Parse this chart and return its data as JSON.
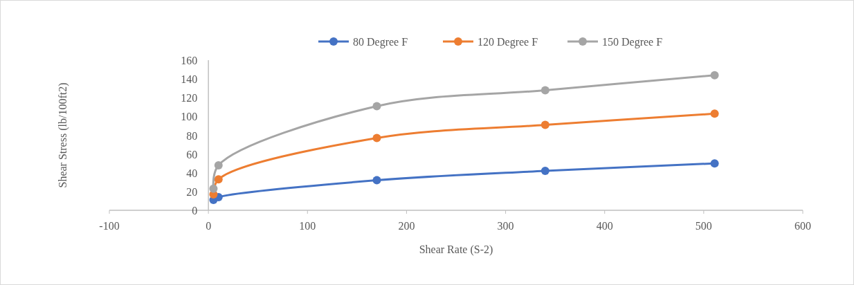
{
  "chart_data": {
    "type": "line",
    "xlabel": "Shear Rate (S-2)",
    "ylabel": "Shear Stress (lb/100ft2)",
    "x": [
      5.1,
      10.2,
      170,
      340,
      511
    ],
    "series": [
      {
        "name": "80 Degree F",
        "color": "#4472c4",
        "values": [
          11,
          14,
          32,
          42,
          50
        ]
      },
      {
        "name": "120 Degree F",
        "color": "#ed7d31",
        "values": [
          17,
          33,
          77,
          91,
          103
        ]
      },
      {
        "name": "150 Degree F",
        "color": "#a5a5a5",
        "values": [
          23,
          48,
          111,
          128,
          144
        ]
      }
    ],
    "xlim": [
      -100,
      600
    ],
    "xticks": [
      -100,
      0,
      100,
      200,
      300,
      400,
      500,
      600
    ],
    "ylim": [
      0,
      160
    ],
    "yticks": [
      0,
      20,
      40,
      60,
      80,
      100,
      120,
      140,
      160
    ],
    "grid": false,
    "legend": "top",
    "marker": "circle",
    "line_style": "solid"
  }
}
